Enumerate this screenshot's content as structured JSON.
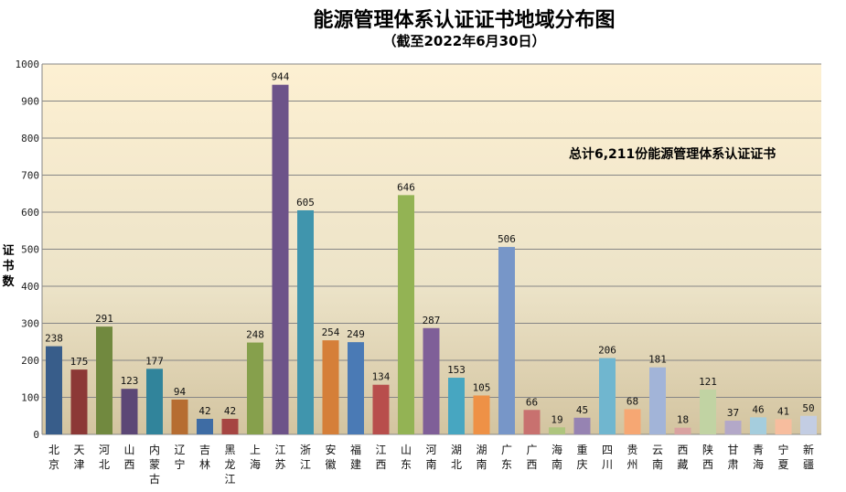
{
  "chart_data": {
    "type": "bar",
    "title": "能源管理体系认证证书地域分布图",
    "subtitle": "（截至2022年6月30日）",
    "ylabel": "证书数",
    "xlabel": "",
    "ylim": [
      0,
      1000
    ],
    "yticks": [
      0,
      100,
      200,
      300,
      400,
      500,
      600,
      700,
      800,
      900,
      1000
    ],
    "grid": true,
    "annotation": "总计6,211份能源管理体系认证证书",
    "categories": [
      "北京",
      "天津",
      "河北",
      "山西",
      "内蒙古",
      "辽宁",
      "吉林",
      "黑龙江",
      "上海",
      "江苏",
      "浙江",
      "安徽",
      "福建",
      "江西",
      "山东",
      "河南",
      "湖北",
      "湖南",
      "广东",
      "广西",
      "海南",
      "重庆",
      "四川",
      "贵州",
      "云南",
      "西藏",
      "陕西",
      "甘肃",
      "青海",
      "宁夏",
      "新疆"
    ],
    "values": [
      238,
      175,
      291,
      123,
      177,
      94,
      42,
      42,
      248,
      944,
      605,
      254,
      249,
      134,
      646,
      287,
      153,
      105,
      506,
      66,
      19,
      45,
      206,
      68,
      181,
      18,
      121,
      37,
      46,
      41,
      50
    ],
    "colors": [
      "#385d8a",
      "#8c3836",
      "#71893f",
      "#5c4776",
      "#31849b",
      "#b66d31",
      "#3e6ca4",
      "#a64542",
      "#86a04c",
      "#6d5389",
      "#4095ad",
      "#d57f39",
      "#4a7ab5",
      "#b84e4c",
      "#93b354",
      "#7f5f98",
      "#47a6c1",
      "#ee9146",
      "#7796c8",
      "#c8716f",
      "#aec57e",
      "#9683b2",
      "#70b6cf",
      "#f6a773",
      "#a2b4d8",
      "#d9a2a1",
      "#c1d3a3",
      "#b3a8c8",
      "#a5cddd",
      "#f7bd9e",
      "#c3cde3"
    ]
  }
}
